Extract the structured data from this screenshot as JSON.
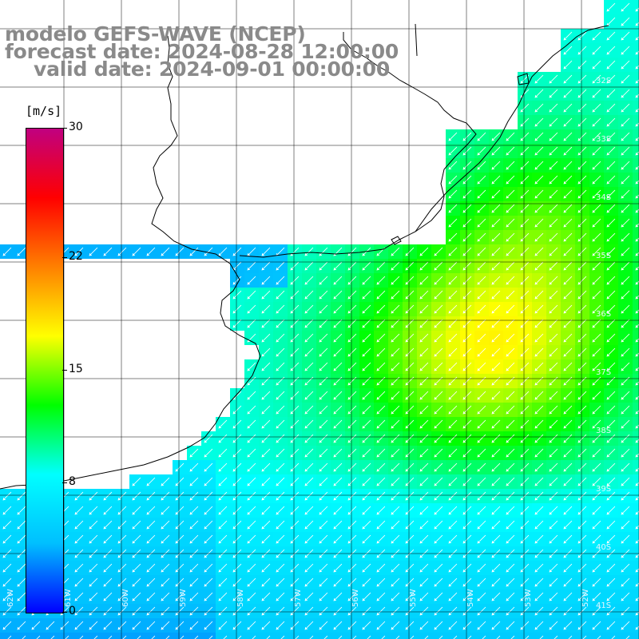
{
  "titles": {
    "line1": "modelo GEFS-WAVE (NCEP)",
    "line2": "forecast date: 2024-08-28 12:00:00",
    "line3": "valid date: 2024-09-01 00:00:00"
  },
  "colorbar": {
    "unit": "[m/s]",
    "ticks": [
      "30",
      "22",
      "15",
      "8",
      "0"
    ],
    "tick_values": [
      30,
      22,
      15,
      8,
      0
    ],
    "stops": [
      "#0000ff",
      "#00bfff",
      "#00ffff",
      "#00ff00",
      "#ffff00",
      "#ff8000",
      "#ff0000",
      "#c00080"
    ]
  },
  "map": {
    "lat_labels": [
      "32S",
      "33S",
      "34S",
      "35S",
      "36S",
      "37S",
      "38S",
      "39S",
      "40S",
      "41S"
    ],
    "lon_labels": [
      "62W",
      "61W",
      "60W",
      "59W",
      "58W",
      "57W",
      "56W",
      "55W",
      "54W",
      "53W",
      "52W"
    ],
    "land_color": "#ffffff",
    "grid_color": "#000000",
    "arrow_color": "#ffffff"
  }
}
